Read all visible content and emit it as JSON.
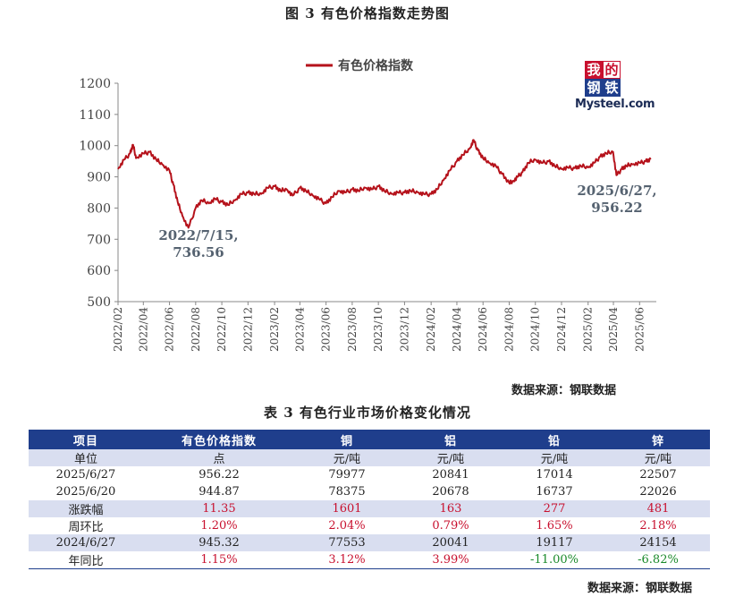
{
  "figure_title": "图 3  有色价格指数走势图",
  "logo": {
    "chars": [
      "我",
      "的",
      "钢",
      "铁"
    ],
    "site": "Mysteel.com"
  },
  "chart_source": "数据来源：钢联数据",
  "chart_data": {
    "type": "line",
    "title": "图 3  有色价格指数走势图",
    "xlabel": "",
    "ylabel": "",
    "ylim": [
      500,
      1200
    ],
    "yticks": [
      500,
      600,
      700,
      800,
      900,
      1000,
      1100,
      1200
    ],
    "x_tick_labels": [
      "2022/02",
      "2022/04",
      "2022/06",
      "2022/08",
      "2022/10",
      "2022/12",
      "2023/02",
      "2023/04",
      "2023/06",
      "2023/08",
      "2023/10",
      "2023/12",
      "2024/02",
      "2024/04",
      "2024/06",
      "2024/08",
      "2024/10",
      "2024/12",
      "2025/02",
      "2025/04",
      "2025/06"
    ],
    "legend": {
      "position": "top-center"
    },
    "grid": false,
    "series": [
      {
        "name": "有色价格指数",
        "color": "#b5121b",
        "x": [
          "2022/02/01",
          "2022/02/15",
          "2022/03/01",
          "2022/03/08",
          "2022/03/15",
          "2022/04/01",
          "2022/04/15",
          "2022/05/01",
          "2022/05/15",
          "2022/06/01",
          "2022/06/10",
          "2022/06/20",
          "2022/07/01",
          "2022/07/15",
          "2022/08/01",
          "2022/08/15",
          "2022/09/01",
          "2022/09/15",
          "2022/10/01",
          "2022/10/15",
          "2022/11/01",
          "2022/11/15",
          "2022/12/01",
          "2022/12/15",
          "2023/01/01",
          "2023/01/15",
          "2023/02/01",
          "2023/02/15",
          "2023/03/01",
          "2023/03/15",
          "2023/04/01",
          "2023/04/15",
          "2023/05/01",
          "2023/05/15",
          "2023/06/01",
          "2023/06/15",
          "2023/07/01",
          "2023/07/15",
          "2023/08/01",
          "2023/08/15",
          "2023/09/01",
          "2023/09/15",
          "2023/10/01",
          "2023/10/15",
          "2023/11/01",
          "2023/11/15",
          "2023/12/01",
          "2023/12/15",
          "2024/01/01",
          "2024/01/15",
          "2024/02/01",
          "2024/02/15",
          "2024/03/01",
          "2024/03/15",
          "2024/04/01",
          "2024/04/15",
          "2024/05/01",
          "2024/05/10",
          "2024/05/20",
          "2024/06/01",
          "2024/06/15",
          "2024/07/01",
          "2024/07/15",
          "2024/08/01",
          "2024/08/10",
          "2024/08/20",
          "2024/09/01",
          "2024/09/15",
          "2024/10/01",
          "2024/10/15",
          "2024/11/01",
          "2024/11/15",
          "2024/12/01",
          "2024/12/15",
          "2025/01/01",
          "2025/01/15",
          "2025/02/01",
          "2025/02/15",
          "2025/03/01",
          "2025/03/15",
          "2025/03/31",
          "2025/04/08",
          "2025/04/20",
          "2025/05/01",
          "2025/05/15",
          "2025/06/01",
          "2025/06/15",
          "2025/06/27"
        ],
        "values": [
          925,
          955,
          975,
          1003,
          960,
          975,
          980,
          955,
          940,
          920,
          875,
          820,
          775,
          736.56,
          800,
          825,
          815,
          830,
          820,
          810,
          825,
          845,
          850,
          845,
          845,
          865,
          870,
          855,
          860,
          840,
          865,
          855,
          840,
          830,
          815,
          835,
          855,
          850,
          860,
          855,
          865,
          860,
          870,
          855,
          845,
          850,
          850,
          855,
          850,
          845,
          845,
          860,
          890,
          920,
          950,
          970,
          990,
          1018,
          985,
          960,
          945,
          935,
          910,
          880,
          885,
          900,
          915,
          945,
          955,
          945,
          950,
          935,
          925,
          930,
          928,
          935,
          930,
          945,
          965,
          975,
          980,
          905,
          925,
          935,
          940,
          945,
          950,
          956.22
        ]
      }
    ],
    "annotations": [
      {
        "date": "2022/07/15",
        "value": 736.56,
        "text_lines": [
          "2022/7/15,",
          "736.56"
        ]
      },
      {
        "date": "2025/06/27",
        "value": 956.22,
        "text_lines": [
          "2025/6/27,",
          "956.22"
        ]
      }
    ]
  },
  "table": {
    "title": "表 3 有色行业市场价格变化情况",
    "headers": [
      "项目",
      "有色价格指数",
      "铜",
      "铝",
      "铅",
      "锌"
    ],
    "rows": [
      {
        "cells": [
          "单位",
          "点",
          "元/吨",
          "元/吨",
          "元/吨",
          "元/吨"
        ],
        "shade": true,
        "tone": ""
      },
      {
        "cells": [
          "2025/6/27",
          "956.22",
          "79977",
          "20841",
          "17014",
          "22507"
        ],
        "shade": false,
        "tone": ""
      },
      {
        "cells": [
          "2025/6/20",
          "944.87",
          "78375",
          "20678",
          "16737",
          "22026"
        ],
        "shade": false,
        "tone": ""
      },
      {
        "cells": [
          "涨跌幅",
          "11.35",
          "1601",
          "163",
          "277",
          "481"
        ],
        "shade": true,
        "tone": "red"
      },
      {
        "cells": [
          "周环比",
          "1.20%",
          "2.04%",
          "0.79%",
          "1.65%",
          "2.18%"
        ],
        "shade": false,
        "tone": "red"
      },
      {
        "cells": [
          "2024/6/27",
          "945.32",
          "77553",
          "20041",
          "19117",
          "24154"
        ],
        "shade": true,
        "tone": ""
      },
      {
        "cells": [
          "年同比",
          "1.15%",
          "3.12%",
          "3.99%",
          "-11.00%",
          "-6.82%"
        ],
        "shade": false,
        "tone": "mixed"
      }
    ]
  },
  "table_source": "数据来源：钢联数据"
}
